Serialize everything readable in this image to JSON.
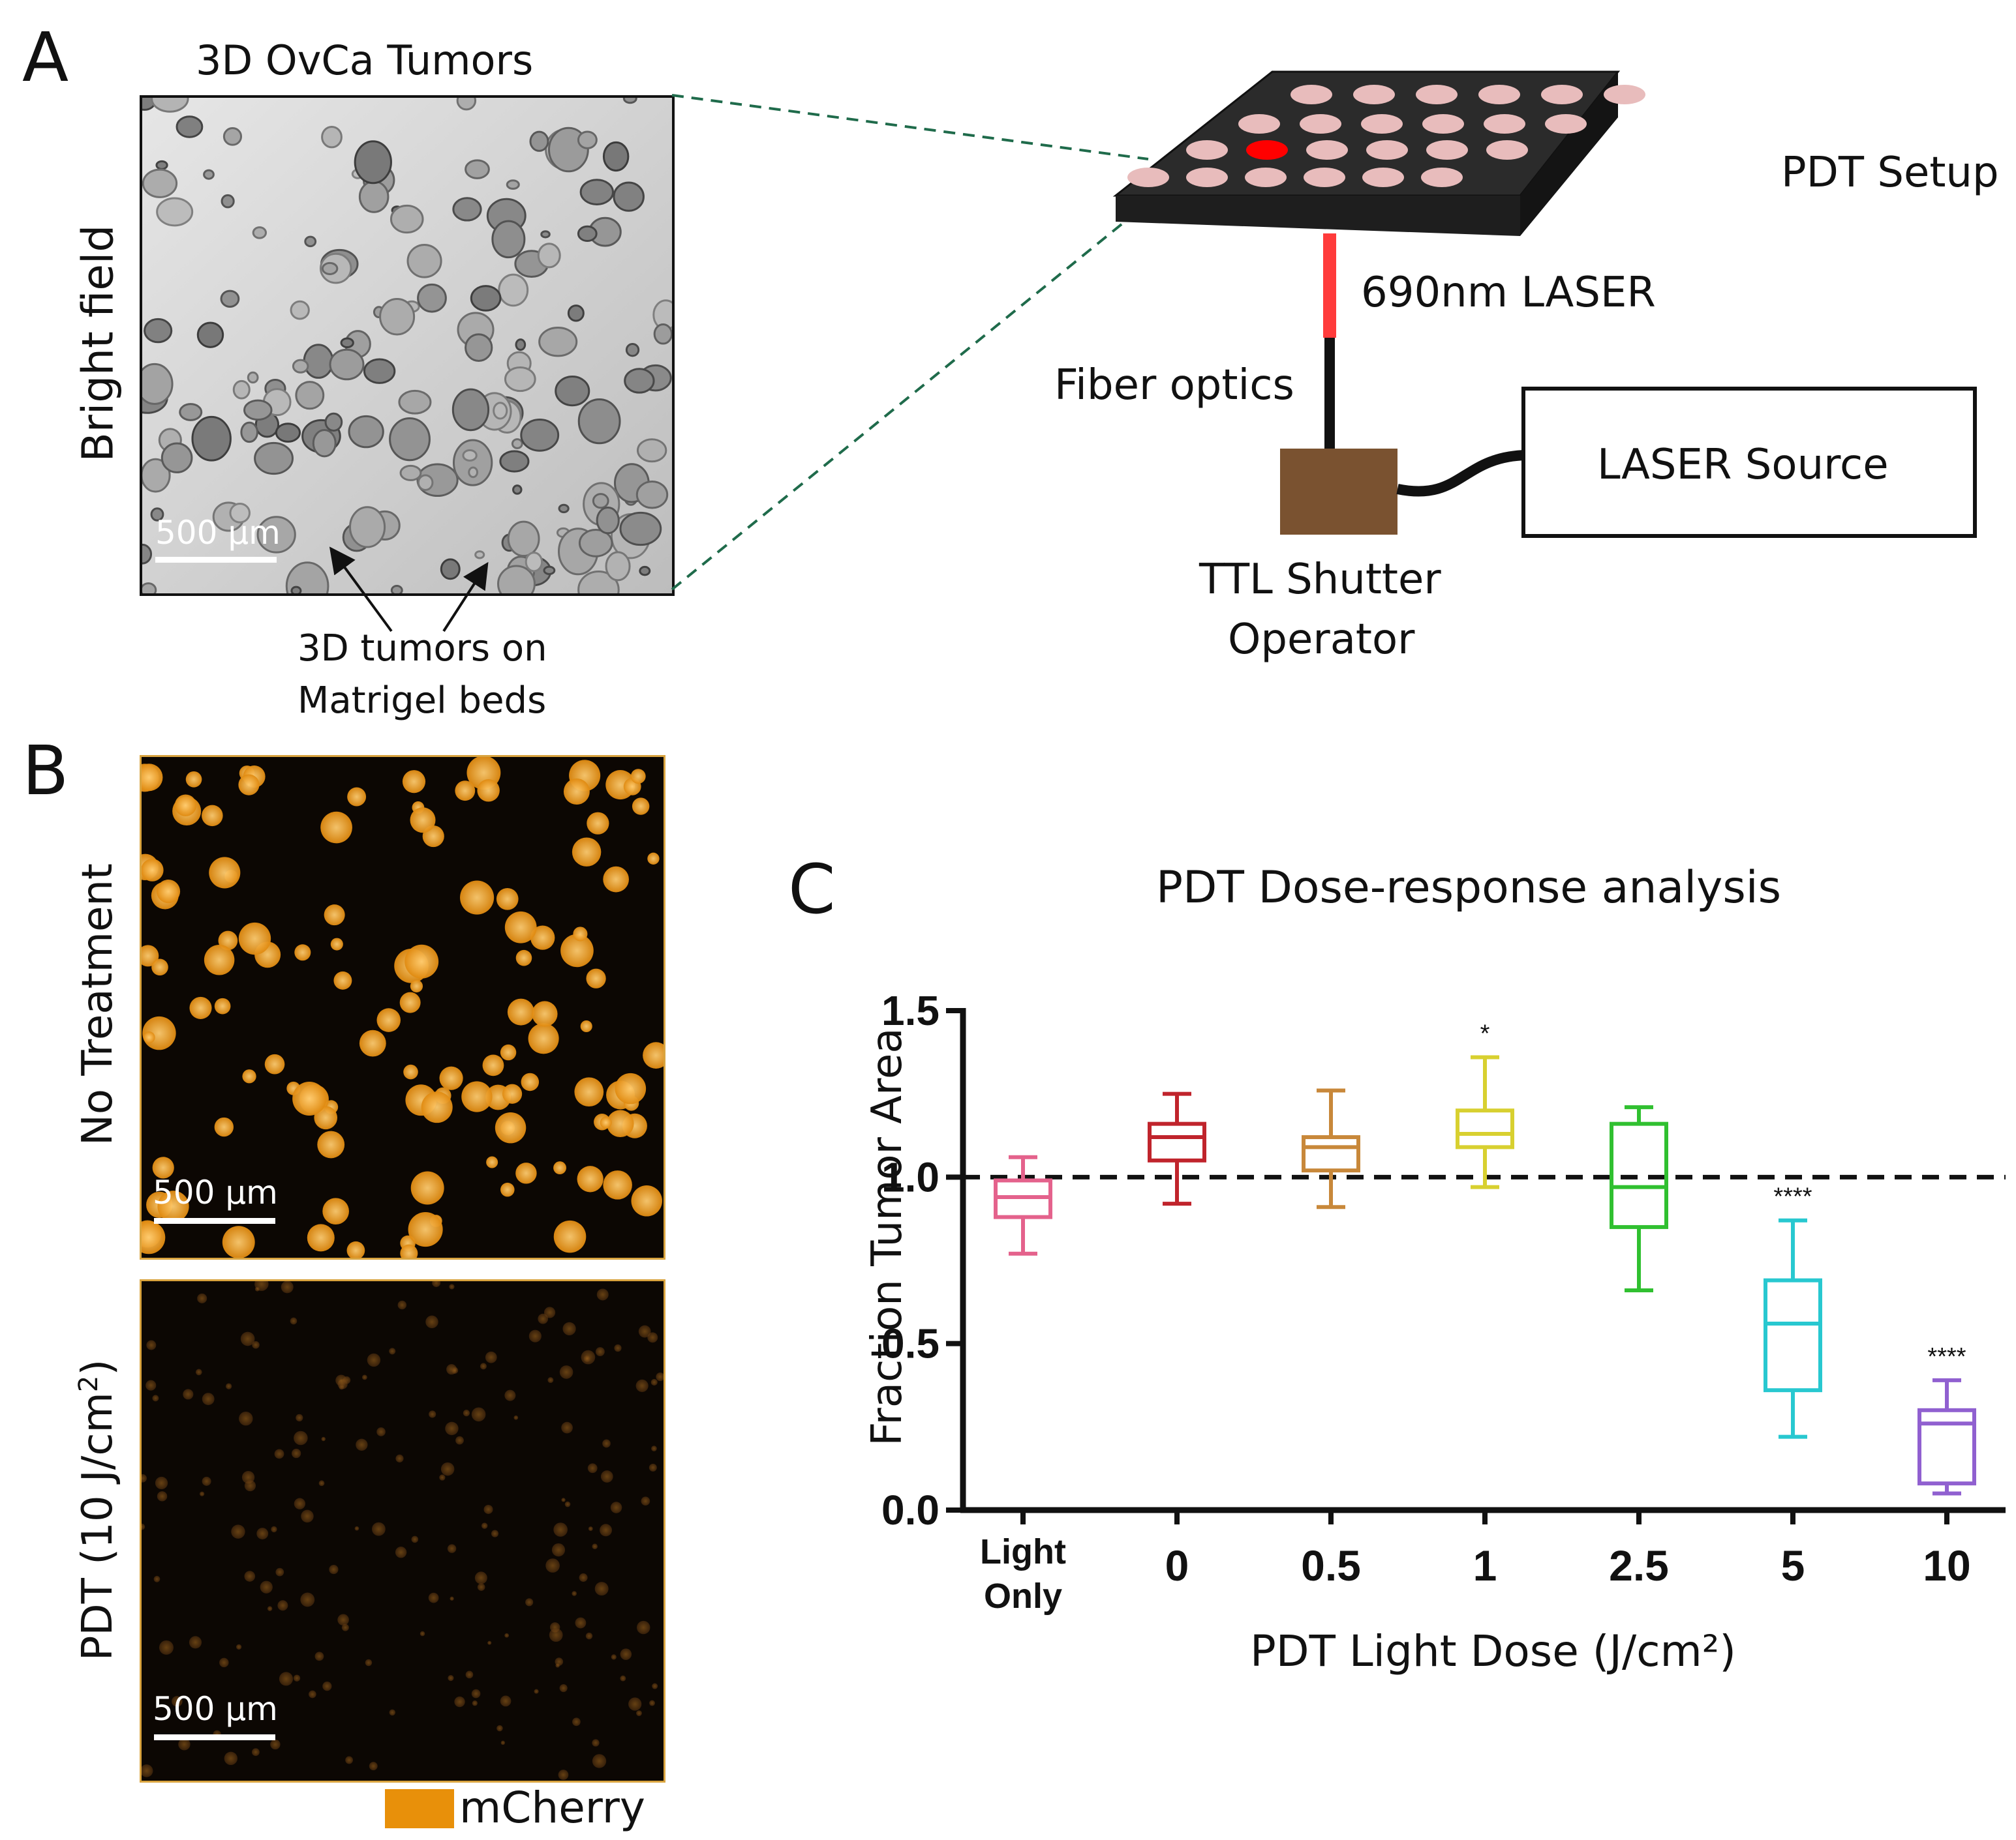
{
  "panel_a": {
    "letter": "A",
    "image_title": "3D OvCa Tumors",
    "side_label": "Bright field",
    "scale_label": "500 µm",
    "annotation_line1": "3D tumors on",
    "annotation_line2": "Matrigel beds",
    "setup_title": "PDT Setup",
    "laser_label": "690nm LASER",
    "fiber_label": "Fiber optics",
    "source_label": "LASER Source",
    "shutter_line1": "TTL Shutter",
    "shutter_line2": "Operator",
    "colors": {
      "plate": "#2b2b2b",
      "well": "#e8bcbc",
      "active_well": "#ff0000",
      "laser": "#ff3b3b",
      "shutter": "#7a5230",
      "guide": "#1f6b4b"
    }
  },
  "panel_b": {
    "letter": "B",
    "top_side_label": "No Treatment",
    "bottom_side_label_prefix": "PDT (10 J/cm",
    "bottom_side_label_sup": "2",
    "bottom_side_label_suffix": ")",
    "scale_label": "500 µm",
    "legend_label": "mCherry",
    "legend_color": "#e8900a"
  },
  "panel_c": {
    "letter": "C"
  },
  "chart_data": {
    "type": "box",
    "title": "PDT Dose-response analysis",
    "xlabel": "PDT Light Dose (J/cm²)",
    "ylabel": "Fraction Tumor Area",
    "ylim": [
      0,
      1.5
    ],
    "yticks": [
      "0.0",
      "0.5",
      "1.0",
      "1.5"
    ],
    "reference_line": 1.0,
    "categories": [
      {
        "line1": "Light",
        "line2": "Only"
      },
      {
        "line1": "0",
        "line2": ""
      },
      {
        "line1": "0.5",
        "line2": ""
      },
      {
        "line1": "1",
        "line2": ""
      },
      {
        "line1": "2.5",
        "line2": ""
      },
      {
        "line1": "5",
        "line2": ""
      },
      {
        "line1": "10",
        "line2": ""
      }
    ],
    "boxes": [
      {
        "min": 0.77,
        "q1": 0.88,
        "median": 0.94,
        "q3": 0.99,
        "max": 1.06,
        "color": "#e4628c",
        "sig": ""
      },
      {
        "min": 0.92,
        "q1": 1.05,
        "median": 1.12,
        "q3": 1.16,
        "max": 1.25,
        "color": "#c0242c",
        "sig": ""
      },
      {
        "min": 0.91,
        "q1": 1.02,
        "median": 1.09,
        "q3": 1.12,
        "max": 1.26,
        "color": "#c8883a",
        "sig": ""
      },
      {
        "min": 0.97,
        "q1": 1.09,
        "median": 1.13,
        "q3": 1.2,
        "max": 1.36,
        "color": "#d8d030",
        "sig": "*"
      },
      {
        "min": 0.66,
        "q1": 0.85,
        "median": 0.97,
        "q3": 1.16,
        "max": 1.21,
        "color": "#30c030",
        "sig": ""
      },
      {
        "min": 0.22,
        "q1": 0.36,
        "median": 0.56,
        "q3": 0.69,
        "max": 0.87,
        "color": "#28c8d0",
        "sig": "****"
      },
      {
        "min": 0.05,
        "q1": 0.08,
        "median": 0.26,
        "q3": 0.3,
        "max": 0.39,
        "color": "#9060d0",
        "sig": "****"
      }
    ]
  }
}
